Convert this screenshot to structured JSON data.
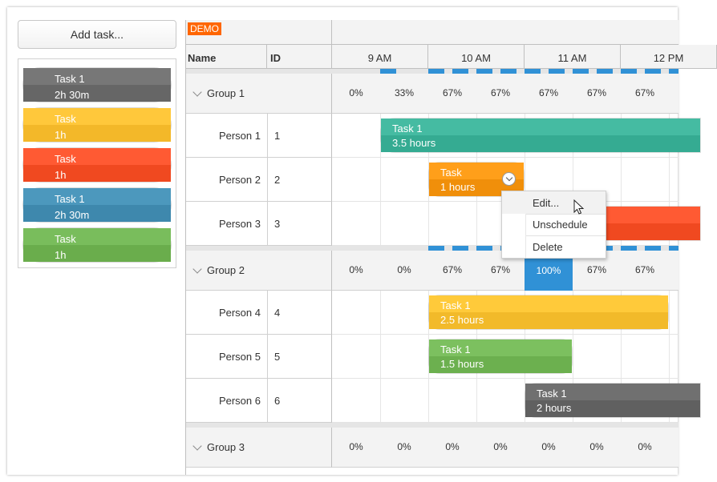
{
  "toolbar": {
    "add_task_label": "Add task..."
  },
  "queue": [
    {
      "title": "Task 1",
      "duration": "2h 30m",
      "color_top": "#777777",
      "color_bottom": "#666666"
    },
    {
      "title": "Task",
      "duration": "1h",
      "color_top": "#ffc83b",
      "color_bottom": "#f3b829"
    },
    {
      "title": "Task",
      "duration": "1h",
      "color_top": "#ff5a33",
      "color_bottom": "#f04920"
    },
    {
      "title": "Task 1",
      "duration": "2h 30m",
      "color_top": "#4c98bd",
      "color_bottom": "#3e88ad"
    },
    {
      "title": "Task",
      "duration": "1h",
      "color_top": "#79bd5c",
      "color_bottom": "#6aad4c"
    }
  ],
  "scheduler": {
    "demo_badge": "DEMO",
    "columns": {
      "name": "Name",
      "id": "ID"
    },
    "hours": [
      "9 AM",
      "10 AM",
      "11 AM",
      "12 PM"
    ],
    "groups": [
      {
        "name": "Group 1",
        "utilization": [
          "0%",
          "33%",
          "67%",
          "67%",
          "67%",
          "67%",
          "67%"
        ]
      },
      {
        "name": "Group 2",
        "utilization": [
          "0%",
          "0%",
          "67%",
          "67%",
          "100%",
          "67%",
          "67%"
        ]
      },
      {
        "name": "Group 3",
        "utilization": [
          "0%",
          "0%",
          "0%",
          "0%",
          "0%",
          "0%",
          "0%"
        ]
      }
    ],
    "people": [
      {
        "name": "Person 1",
        "id": "1"
      },
      {
        "name": "Person 2",
        "id": "2"
      },
      {
        "name": "Person 3",
        "id": "3"
      },
      {
        "name": "Person 4",
        "id": "4"
      },
      {
        "name": "Person 5",
        "id": "5"
      },
      {
        "name": "Person 6",
        "id": "6"
      }
    ],
    "events": [
      {
        "title": "Task 1",
        "duration": "3.5 hours",
        "color_top": "#45bba2",
        "color_bottom": "#35ab92"
      },
      {
        "title": "Task",
        "duration": "1 hours",
        "color_top": "#ff9f1a",
        "color_bottom": "#f08f0a"
      },
      {
        "title": "",
        "duration": "",
        "color_top": "#ff5a33",
        "color_bottom": "#f04920"
      },
      {
        "title": "Task 1",
        "duration": "2.5 hours",
        "color_top": "#ffca3a",
        "color_bottom": "#f2ba2a"
      },
      {
        "title": "Task 1",
        "duration": "1.5 hours",
        "color_top": "#7cc05f",
        "color_bottom": "#6cb04f"
      },
      {
        "title": "Task 1",
        "duration": "2 hours",
        "color_top": "#707070",
        "color_bottom": "#606060"
      }
    ],
    "bar_color": "#3091d6"
  },
  "context_menu": {
    "items": [
      "Edit...",
      "Unschedule",
      "Delete"
    ]
  }
}
